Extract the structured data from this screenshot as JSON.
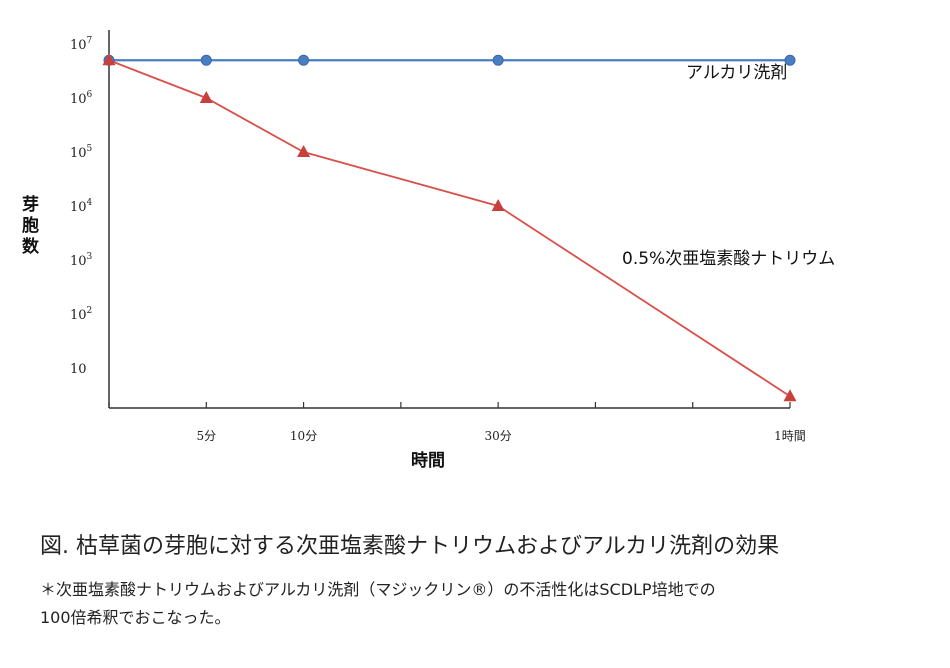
{
  "chart_data": {
    "type": "line",
    "y_scale": "log",
    "ylim": [
      1,
      10000000
    ],
    "y_ticks": [
      {
        "value": 10000000,
        "label": "10",
        "exp": "7"
      },
      {
        "value": 1000000,
        "label": "10",
        "exp": "6"
      },
      {
        "value": 100000,
        "label": "10",
        "exp": "5"
      },
      {
        "value": 10000,
        "label": "10",
        "exp": "4"
      },
      {
        "value": 1000,
        "label": "10",
        "exp": "3"
      },
      {
        "value": 100,
        "label": "10",
        "exp": "2"
      },
      {
        "value": 10,
        "label": "10",
        "exp": ""
      }
    ],
    "x_ticks": [
      "",
      "5分",
      "10分",
      "",
      "30分",
      "",
      "",
      "1時間"
    ],
    "xlabel": "時間",
    "ylabel": "芽胞数",
    "series": [
      {
        "name": "アルカリ洗剤",
        "color": "#4a7ec4",
        "marker": "circle",
        "points": [
          {
            "x": "0",
            "y": 5000000
          },
          {
            "x": "5分",
            "y": 5000000
          },
          {
            "x": "10分",
            "y": 5000000
          },
          {
            "x": "30分",
            "y": 5000000
          },
          {
            "x": "1時間",
            "y": 5000000
          }
        ]
      },
      {
        "name": "0.5%次亜塩素酸ナトリウム",
        "color": "#d9504a",
        "marker": "triangle",
        "points": [
          {
            "x": "0",
            "y": 5000000
          },
          {
            "x": "5分",
            "y": 1000000
          },
          {
            "x": "10分",
            "y": 100000
          },
          {
            "x": "30分",
            "y": 10000
          },
          {
            "x": "1時間",
            "y": 3
          }
        ]
      }
    ]
  },
  "caption": "図. 枯草菌の芽胞に対する次亜塩素酸ナトリウムおよびアルカリ洗剤の効果",
  "note_line1": "＊次亜塩素酸ナトリウムおよびアルカリ洗剤（マジックリン®）の不活性化はSCDLP培地での",
  "note_line2": "100倍希釈でおこなった。"
}
